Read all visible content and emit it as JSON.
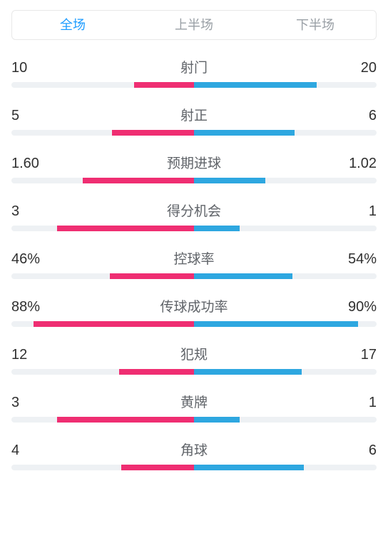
{
  "colors": {
    "home": "#ef2e72",
    "away": "#2ea7e0",
    "track": "#eef1f4",
    "tab_active": "#1e9cff",
    "tab_inactive": "#9aa0a6",
    "text_value": "#303030",
    "text_label": "#5f6368",
    "background": "#ffffff"
  },
  "tabs": [
    {
      "label": "全场",
      "active": true
    },
    {
      "label": "上半场",
      "active": false
    },
    {
      "label": "下半场",
      "active": false
    }
  ],
  "bar": {
    "height": 8,
    "track_radius": 4
  },
  "stats": [
    {
      "label": "射门",
      "home": "10",
      "away": "20",
      "home_pct": 33,
      "away_pct": 67
    },
    {
      "label": "射正",
      "home": "5",
      "away": "6",
      "home_pct": 45,
      "away_pct": 55
    },
    {
      "label": "预期进球",
      "home": "1.60",
      "away": "1.02",
      "home_pct": 61,
      "away_pct": 39
    },
    {
      "label": "得分机会",
      "home": "3",
      "away": "1",
      "home_pct": 75,
      "away_pct": 25
    },
    {
      "label": "控球率",
      "home": "46%",
      "away": "54%",
      "home_pct": 46,
      "away_pct": 54
    },
    {
      "label": "传球成功率",
      "home": "88%",
      "away": "90%",
      "home_pct": 88,
      "away_pct": 90
    },
    {
      "label": "犯规",
      "home": "12",
      "away": "17",
      "home_pct": 41,
      "away_pct": 59
    },
    {
      "label": "黄牌",
      "home": "3",
      "away": "1",
      "home_pct": 75,
      "away_pct": 25
    },
    {
      "label": "角球",
      "home": "4",
      "away": "6",
      "home_pct": 40,
      "away_pct": 60
    }
  ]
}
